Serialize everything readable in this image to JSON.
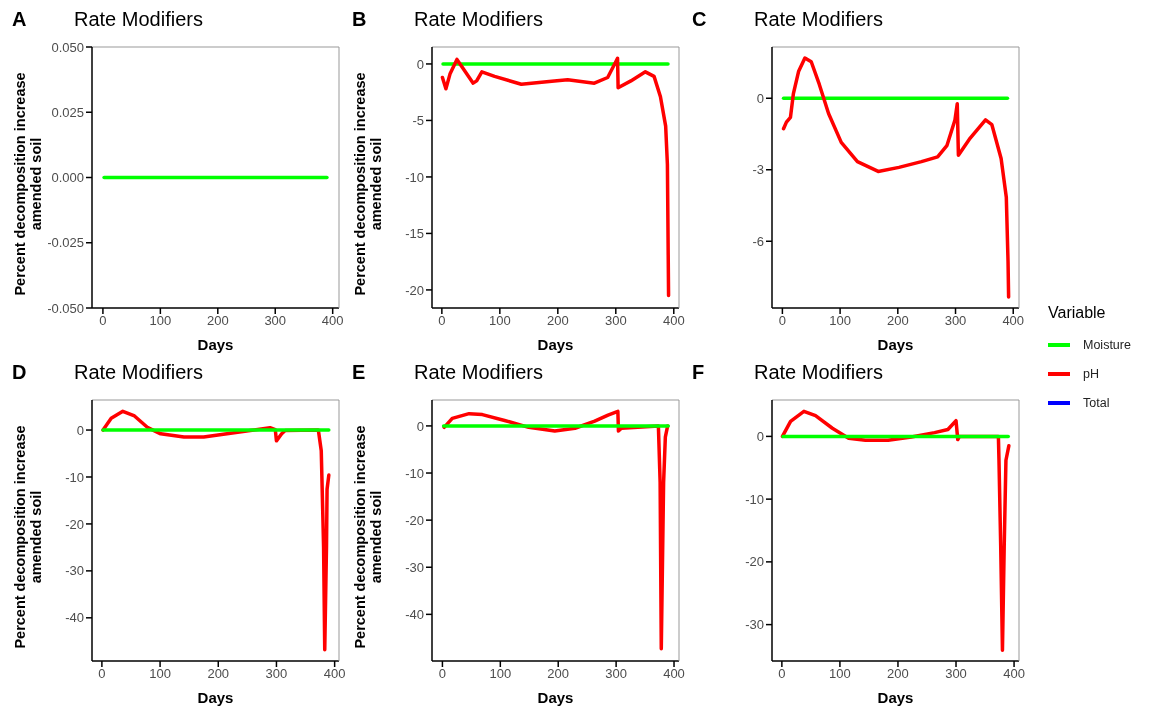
{
  "chart_data": [
    {
      "type": "line",
      "title": "Rate Modifiers",
      "annotations": [
        "A"
      ],
      "xlabel": "Days",
      "ylabel": "Percent decomposition increase amended soil",
      "xlim": [
        -19,
        411
      ],
      "xticks": [
        0,
        100,
        200,
        300,
        400
      ],
      "ylim": [
        -0.05,
        0.05
      ],
      "yticks": [
        {
          "value": -0.05,
          "label": "-0.050"
        },
        {
          "value": -0.025,
          "label": "-0.025"
        },
        {
          "value": 0,
          "label": "0.000"
        },
        {
          "value": 0.025,
          "label": "0.025"
        },
        {
          "value": 0.05,
          "label": "0.050"
        }
      ],
      "grid": false,
      "legend": false,
      "marker": "none",
      "line_style": "solid",
      "series": [
        {
          "color": "#00ff00",
          "x": [
            2,
            390
          ],
          "values": [
            0,
            0
          ]
        }
      ]
    },
    {
      "type": "line",
      "title": "Rate Modifiers",
      "annotations": [
        "B"
      ],
      "xlabel": "Days",
      "ylabel": "Percent decomposition increase amended soil",
      "xlim": [
        -17,
        409
      ],
      "xticks": [
        0,
        100,
        200,
        300,
        400
      ],
      "ylim": [
        -21.6,
        1.5
      ],
      "yticks": [
        -20,
        -15,
        -10,
        -5,
        0
      ],
      "grid": false,
      "legend": false,
      "marker": "none",
      "line_style": "solid",
      "series": [
        {
          "color": "#00ff00",
          "x": [
            2,
            390
          ],
          "values": [
            0,
            0
          ]
        },
        {
          "color": "#ff0000",
          "x": [
            1,
            7,
            14,
            26,
            34,
            54,
            60,
            69,
            91,
            137,
            194,
            217,
            263,
            286,
            300,
            303,
            304,
            326,
            351,
            366,
            377,
            386,
            389,
            390,
            391
          ],
          "values": [
            -1.2,
            -2.2,
            -0.9,
            0.4,
            -0.2,
            -1.7,
            -1.5,
            -0.7,
            -1.1,
            -1.8,
            -1.5,
            -1.4,
            -1.7,
            -1.2,
            0.2,
            0.5,
            -2.1,
            -1.5,
            -0.7,
            -1.1,
            -2.9,
            -5.5,
            -8.9,
            -14.7,
            -20.5
          ]
        }
      ]
    },
    {
      "type": "line",
      "title": "Rate Modifiers",
      "annotations": [
        "C"
      ],
      "xlabel": "Days",
      "xlim": [
        -18,
        410
      ],
      "xticks": [
        0,
        100,
        200,
        300,
        400
      ],
      "ylim": [
        -8.8,
        2.15
      ],
      "yticks": [
        -6,
        -3,
        0
      ],
      "grid": false,
      "legend": "right",
      "legend_title": "Variable",
      "marker": "none",
      "line_style": "solid",
      "series": [
        {
          "name": "Moisture",
          "color": "#00ff00",
          "x": [
            2,
            390
          ],
          "values": [
            0,
            0
          ]
        },
        {
          "name": "pH",
          "color": "#ff0000",
          "x": [
            2,
            7,
            14,
            19,
            28,
            39,
            50,
            64,
            80,
            102,
            130,
            166,
            202,
            241,
            269,
            285,
            299,
            303,
            305,
            324,
            352,
            363,
            379,
            388,
            391,
            392
          ],
          "values": [
            -1.28,
            -1.0,
            -0.8,
            0.18,
            1.12,
            1.69,
            1.53,
            0.58,
            -0.64,
            -1.85,
            -2.66,
            -3.07,
            -2.9,
            -2.66,
            -2.46,
            -1.99,
            -0.91,
            -0.23,
            -2.39,
            -1.72,
            -0.91,
            -1.11,
            -2.53,
            -4.15,
            -6.85,
            -8.34
          ]
        },
        {
          "name": "Total",
          "color": "#0000ff"
        }
      ]
    },
    {
      "type": "line",
      "title": "Rate Modifiers",
      "annotations": [
        "D"
      ],
      "xlabel": "Days",
      "ylabel": "Percent decomposition increase amended soil",
      "xlim": [
        -17,
        407.5
      ],
      "xticks": [
        0,
        100,
        200,
        300,
        400
      ],
      "ylim": [
        -49.2,
        6.4
      ],
      "yticks": [
        -40,
        -30,
        -20,
        -10,
        0
      ],
      "grid": false,
      "legend": false,
      "marker": "none",
      "line_style": "solid",
      "series": [
        {
          "color": "#ff0000",
          "x": [
            2,
            16,
            36,
            56,
            79,
            101,
            141,
            175,
            215,
            255,
            289,
            298,
            300,
            309,
            315,
            372,
            377,
            381,
            383,
            386,
            387,
            390
          ],
          "values": [
            0,
            2.5,
            4.0,
            3.0,
            0.5,
            -0.8,
            -1.5,
            -1.5,
            -0.8,
            -0.1,
            0.5,
            0.1,
            -2.3,
            -0.8,
            -0.1,
            0,
            -4.4,
            -24.9,
            -46.8,
            -24.9,
            -12.6,
            -9.6
          ]
        },
        {
          "color": "#00ff00",
          "x": [
            2,
            390
          ],
          "values": [
            0,
            0
          ]
        }
      ]
    },
    {
      "type": "line",
      "title": "Rate Modifiers",
      "annotations": [
        "E"
      ],
      "xlabel": "Days",
      "ylabel": "Percent decomposition increase amended soil",
      "xlim": [
        -18,
        408.6
      ],
      "xticks": [
        0,
        100,
        200,
        300,
        400
      ],
      "ylim": [
        -49.9,
        5.5
      ],
      "yticks": [
        -40,
        -30,
        -20,
        -10,
        0
      ],
      "grid": false,
      "legend": false,
      "marker": "none",
      "line_style": "solid",
      "series": [
        {
          "color": "#ff0000",
          "x": [
            3,
            17,
            46,
            69,
            109,
            149,
            194,
            229,
            263,
            286,
            303,
            304,
            309,
            373,
            376,
            378,
            382,
            385,
            389
          ],
          "values": [
            -0.3,
            1.6,
            2.6,
            2.4,
            1.1,
            -0.3,
            -1.1,
            -0.5,
            1.0,
            2.3,
            3.1,
            -1.1,
            -0.5,
            0,
            -12,
            -47.3,
            -12,
            -2.4,
            0
          ]
        },
        {
          "color": "#00ff00",
          "x": [
            2,
            390
          ],
          "values": [
            0,
            0
          ]
        }
      ]
    },
    {
      "type": "line",
      "title": "Rate Modifiers",
      "annotations": [
        "F"
      ],
      "xlabel": "Days",
      "xlim": [
        -17,
        408.5
      ],
      "xticks": [
        0,
        100,
        200,
        300,
        400
      ],
      "ylim": [
        -35.8,
        5.8
      ],
      "yticks": [
        -30,
        -20,
        -10,
        0
      ],
      "grid": false,
      "legend": false,
      "marker": "none",
      "line_style": "solid",
      "series": [
        {
          "color": "#ff0000",
          "x": [
            1,
            15,
            38,
            58,
            87,
            115,
            144,
            183,
            223,
            263,
            286,
            300,
            303,
            306,
            373,
            374,
            377,
            380,
            383,
            386,
            391
          ],
          "values": [
            0,
            2.4,
            4.0,
            3.3,
            1.3,
            -0.3,
            -0.6,
            -0.6,
            -0.1,
            0.6,
            1.1,
            2.5,
            -0.5,
            0,
            0,
            -3.8,
            -17.6,
            -34.1,
            -17.6,
            -3.8,
            -1.5
          ]
        },
        {
          "color": "#00ff00",
          "x": [
            2,
            390
          ],
          "values": [
            0,
            0
          ]
        }
      ]
    }
  ]
}
